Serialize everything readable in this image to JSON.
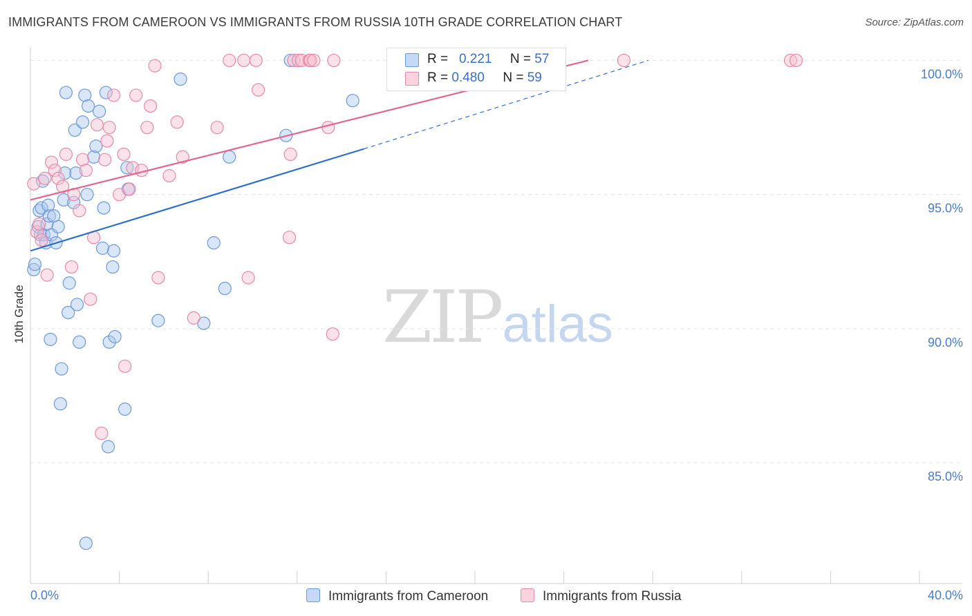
{
  "title": "IMMIGRANTS FROM CAMEROON VS IMMIGRANTS FROM RUSSIA 10TH GRADE CORRELATION CHART",
  "source": "Source: ZipAtlas.com",
  "watermark": {
    "zip": "ZIP",
    "atlas": "atlas"
  },
  "colors": {
    "cameroon_fill": "#aac8f0",
    "cameroon_stroke": "#6b9ad8",
    "cameroon_line": "#2e6fcc",
    "russia_fill": "#f7bfd0",
    "russia_stroke": "#e68aa6",
    "russia_line": "#e06690",
    "tick_text": "#4a7cc9",
    "grid": "#e3e3e3"
  },
  "legend": {
    "rows": [
      {
        "r_label": "R =",
        "r_value": "0.221",
        "n_label": "N =",
        "n_value": "57"
      },
      {
        "r_label": "R =",
        "r_value": "0.480",
        "n_label": "N =",
        "n_value": "59"
      }
    ]
  },
  "bottom_legend": [
    "Immigrants from Cameroon",
    "Immigrants from Russia"
  ],
  "chart_data": {
    "type": "scatter",
    "title": "IMMIGRANTS FROM CAMEROON VS IMMIGRANTS FROM RUSSIA 10TH GRADE CORRELATION CHART",
    "xlabel": "",
    "ylabel": "10th Grade",
    "xlim": [
      0,
      40
    ],
    "ylim": [
      80.5,
      100.5
    ],
    "x_tick_labels": [
      "0.0%",
      "40.0%"
    ],
    "y_ticks": [
      85,
      90,
      95,
      100
    ],
    "y_tick_labels": [
      "85.0%",
      "90.0%",
      "95.0%",
      "100.0%"
    ],
    "grid": true,
    "series": [
      {
        "name": "Immigrants from Cameroon",
        "R": 0.221,
        "N": 57,
        "trend": {
          "x0": 0.0,
          "y0": 92.9,
          "x1": 15.0,
          "y1": 96.7,
          "dash_to_x": 27.8,
          "dash_to_y": 100.0
        },
        "points": [
          [
            0.15,
            92.2
          ],
          [
            0.2,
            92.4
          ],
          [
            0.35,
            93.8
          ],
          [
            0.4,
            94.4
          ],
          [
            0.45,
            93.5
          ],
          [
            0.5,
            94.5
          ],
          [
            0.55,
            95.5
          ],
          [
            0.6,
            93.5
          ],
          [
            0.7,
            93.2
          ],
          [
            0.75,
            93.9
          ],
          [
            0.8,
            94.6
          ],
          [
            0.85,
            94.2
          ],
          [
            0.9,
            89.6
          ],
          [
            0.95,
            93.5
          ],
          [
            1.05,
            94.2
          ],
          [
            1.15,
            93.2
          ],
          [
            1.25,
            93.8
          ],
          [
            1.35,
            87.2
          ],
          [
            1.4,
            88.5
          ],
          [
            1.5,
            94.8
          ],
          [
            1.55,
            95.8
          ],
          [
            1.6,
            98.8
          ],
          [
            1.7,
            90.6
          ],
          [
            1.75,
            91.7
          ],
          [
            1.95,
            94.7
          ],
          [
            2.0,
            97.4
          ],
          [
            2.05,
            95.8
          ],
          [
            2.1,
            90.9
          ],
          [
            2.2,
            89.5
          ],
          [
            2.35,
            97.7
          ],
          [
            2.45,
            98.7
          ],
          [
            2.5,
            82.0
          ],
          [
            2.55,
            95.0
          ],
          [
            2.6,
            98.3
          ],
          [
            2.85,
            96.4
          ],
          [
            2.95,
            96.8
          ],
          [
            3.1,
            98.1
          ],
          [
            3.25,
            93.0
          ],
          [
            3.3,
            94.5
          ],
          [
            3.4,
            98.8
          ],
          [
            3.5,
            85.6
          ],
          [
            3.55,
            89.5
          ],
          [
            3.7,
            92.3
          ],
          [
            3.75,
            92.9
          ],
          [
            3.8,
            89.7
          ],
          [
            4.25,
            87.0
          ],
          [
            4.35,
            96.0
          ],
          [
            4.4,
            95.2
          ],
          [
            5.75,
            90.3
          ],
          [
            6.75,
            99.3
          ],
          [
            7.8,
            90.2
          ],
          [
            8.25,
            93.2
          ],
          [
            8.75,
            91.5
          ],
          [
            8.95,
            96.4
          ],
          [
            11.5,
            97.2
          ],
          [
            11.7,
            100.0
          ],
          [
            14.5,
            98.5
          ]
        ]
      },
      {
        "name": "Immigrants from Russia",
        "R": 0.48,
        "N": 59,
        "trend": {
          "x0": 0.0,
          "y0": 94.8,
          "x1": 25.1,
          "y1": 100.0
        },
        "points": [
          [
            0.15,
            95.4
          ],
          [
            0.3,
            93.6
          ],
          [
            0.4,
            93.9
          ],
          [
            0.5,
            93.3
          ],
          [
            0.65,
            95.6
          ],
          [
            0.75,
            92.0
          ],
          [
            0.95,
            96.2
          ],
          [
            1.1,
            95.9
          ],
          [
            1.25,
            95.6
          ],
          [
            1.45,
            95.3
          ],
          [
            1.6,
            96.5
          ],
          [
            1.85,
            92.3
          ],
          [
            1.95,
            95.0
          ],
          [
            2.2,
            94.4
          ],
          [
            2.35,
            96.3
          ],
          [
            2.5,
            95.9
          ],
          [
            2.7,
            91.1
          ],
          [
            2.85,
            93.4
          ],
          [
            3.0,
            97.6
          ],
          [
            3.2,
            86.1
          ],
          [
            3.35,
            96.3
          ],
          [
            3.45,
            97.0
          ],
          [
            3.55,
            97.5
          ],
          [
            3.75,
            98.7
          ],
          [
            4.0,
            95.0
          ],
          [
            4.2,
            96.5
          ],
          [
            4.25,
            88.6
          ],
          [
            4.45,
            95.2
          ],
          [
            4.6,
            96.0
          ],
          [
            4.75,
            98.7
          ],
          [
            5.0,
            95.9
          ],
          [
            5.25,
            97.5
          ],
          [
            5.4,
            98.3
          ],
          [
            5.6,
            99.8
          ],
          [
            5.75,
            91.9
          ],
          [
            6.25,
            95.7
          ],
          [
            6.6,
            97.7
          ],
          [
            6.85,
            96.4
          ],
          [
            7.35,
            90.4
          ],
          [
            8.4,
            97.5
          ],
          [
            8.95,
            100.0
          ],
          [
            9.6,
            100.0
          ],
          [
            9.8,
            91.9
          ],
          [
            10.15,
            100.0
          ],
          [
            10.25,
            98.9
          ],
          [
            11.65,
            93.4
          ],
          [
            11.7,
            96.5
          ],
          [
            11.85,
            100.0
          ],
          [
            12.05,
            100.0
          ],
          [
            12.2,
            100.0
          ],
          [
            12.55,
            100.0
          ],
          [
            12.6,
            100.0
          ],
          [
            12.75,
            100.0
          ],
          [
            13.4,
            97.5
          ],
          [
            13.6,
            89.8
          ],
          [
            13.65,
            100.0
          ],
          [
            26.7,
            100.0
          ],
          [
            34.2,
            100.0
          ],
          [
            34.45,
            100.0
          ]
        ]
      }
    ]
  }
}
